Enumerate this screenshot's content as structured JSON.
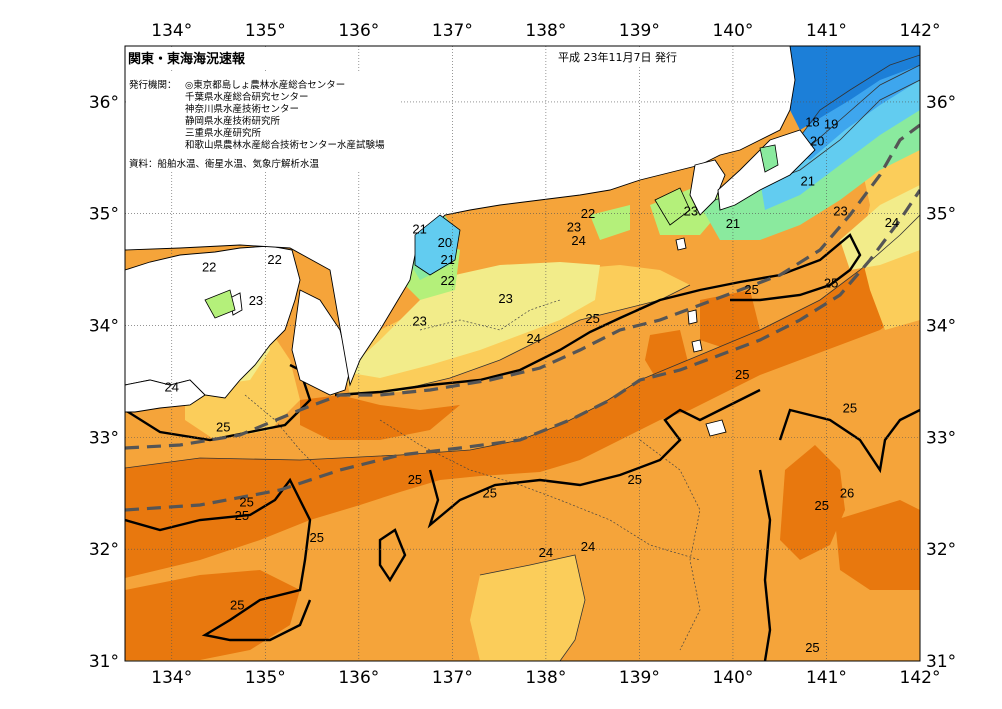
{
  "header": {
    "title": "関東・東海海況速報",
    "date": "平成 23年11月7日 発行",
    "issuer_label": "発行機関：",
    "issuers": [
      "◎東京都島しょ農林水産総合センター",
      "千葉県水産総合研究センター",
      "神奈川県水産技術センター",
      "静岡県水産技術研究所",
      "三重県水産研究所",
      "和歌山県農林水産総合技術センター水産試験場"
    ],
    "source": "資料：船舶水温、衛星水温、気象庁解析水温"
  },
  "axes": {
    "lon_labels": [
      "134°",
      "135°",
      "136°",
      "137°",
      "138°",
      "139°",
      "140°",
      "141°",
      "142°"
    ],
    "lat_labels": [
      "36°",
      "35°",
      "34°",
      "33°",
      "32°",
      "31°"
    ],
    "lon_range": [
      133.5,
      142.0
    ],
    "lat_range": [
      31.0,
      36.5
    ]
  },
  "colors": {
    "land": "#ffffff",
    "sst_18": "#1c7fd8",
    "sst_19": "#3ea6ee",
    "sst_20": "#62ccf0",
    "sst_21": "#8aea9e",
    "sst_22": "#b4f07a",
    "sst_23": "#f2ec8a",
    "sst_24": "#fbcd5a",
    "sst_25": "#f5a43a",
    "sst_26": "#e8780e",
    "kuroshio_axis": "#555555"
  },
  "contour_labels": [
    {
      "text": "18",
      "lon": 140.85,
      "lat": 35.8
    },
    {
      "text": "19",
      "lon": 141.05,
      "lat": 35.78
    },
    {
      "text": "20",
      "lon": 140.9,
      "lat": 35.63
    },
    {
      "text": "21",
      "lon": 140.8,
      "lat": 35.27
    },
    {
      "text": "23",
      "lon": 141.15,
      "lat": 35.0
    },
    {
      "text": "21",
      "lon": 140.0,
      "lat": 34.89
    },
    {
      "text": "23",
      "lon": 139.55,
      "lat": 35.0
    },
    {
      "text": "22",
      "lon": 138.45,
      "lat": 34.98
    },
    {
      "text": "23",
      "lon": 138.3,
      "lat": 34.86
    },
    {
      "text": "24",
      "lon": 138.35,
      "lat": 34.74
    },
    {
      "text": "21",
      "lon": 136.65,
      "lat": 34.84
    },
    {
      "text": "20",
      "lon": 136.92,
      "lat": 34.72
    },
    {
      "text": "21",
      "lon": 136.95,
      "lat": 34.57
    },
    {
      "text": "22",
      "lon": 136.95,
      "lat": 34.38
    },
    {
      "text": "22",
      "lon": 134.4,
      "lat": 34.5
    },
    {
      "text": "22",
      "lon": 135.1,
      "lat": 34.57
    },
    {
      "text": "23",
      "lon": 134.9,
      "lat": 34.2
    },
    {
      "text": "23",
      "lon": 137.57,
      "lat": 34.22
    },
    {
      "text": "23",
      "lon": 136.65,
      "lat": 34.02
    },
    {
      "text": "24",
      "lon": 137.87,
      "lat": 33.86
    },
    {
      "text": "25",
      "lon": 138.5,
      "lat": 34.04
    },
    {
      "text": "25",
      "lon": 140.2,
      "lat": 34.3
    },
    {
      "text": "25",
      "lon": 141.05,
      "lat": 34.36
    },
    {
      "text": "24",
      "lon": 141.7,
      "lat": 34.9
    },
    {
      "text": "25",
      "lon": 140.1,
      "lat": 33.54
    },
    {
      "text": "24",
      "lon": 134.0,
      "lat": 33.43
    },
    {
      "text": "25",
      "lon": 134.55,
      "lat": 33.07
    },
    {
      "text": "25",
      "lon": 136.6,
      "lat": 32.6
    },
    {
      "text": "25",
      "lon": 137.4,
      "lat": 32.48
    },
    {
      "text": "25",
      "lon": 138.95,
      "lat": 32.6
    },
    {
      "text": "25",
      "lon": 141.25,
      "lat": 33.24
    },
    {
      "text": "26",
      "lon": 141.22,
      "lat": 32.48
    },
    {
      "text": "25",
      "lon": 140.95,
      "lat": 32.37
    },
    {
      "text": "25",
      "lon": 134.75,
      "lat": 32.28
    },
    {
      "text": "25",
      "lon": 134.8,
      "lat": 32.4
    },
    {
      "text": "25",
      "lon": 135.55,
      "lat": 32.08
    },
    {
      "text": "24",
      "lon": 138.0,
      "lat": 31.95
    },
    {
      "text": "24",
      "lon": 138.45,
      "lat": 32.0
    },
    {
      "text": "25",
      "lon": 134.7,
      "lat": 31.48
    },
    {
      "text": "25",
      "lon": 140.85,
      "lat": 31.1
    }
  ]
}
